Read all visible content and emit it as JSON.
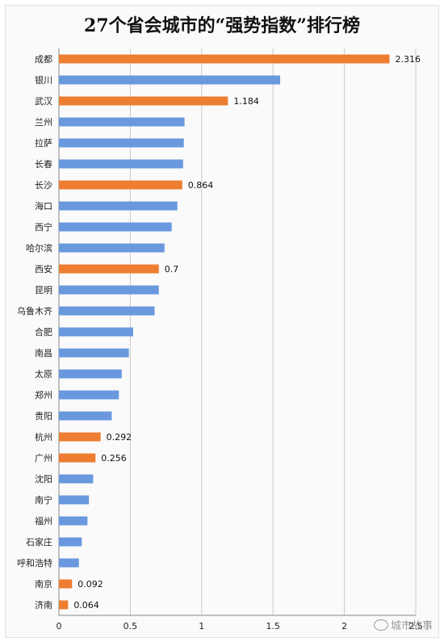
{
  "title": "27个省会城市的“强势指数”排行榜",
  "watermark": "城市故事",
  "colors": {
    "highlight": "#ED7D31",
    "normal": "#6A98DE",
    "grid": "#c9c9c9",
    "axis": "#888888"
  },
  "chart_data": {
    "type": "bar",
    "orientation": "horizontal",
    "title": "27个省会城市的“强势指数”排行榜",
    "xlabel": "",
    "ylabel": "",
    "xlim": [
      0,
      2.5
    ],
    "xticks": [
      0,
      0.5,
      1,
      1.5,
      2,
      2.5
    ],
    "xtick_labels": [
      "0",
      "0.5",
      "1",
      "1.5",
      "2",
      "2.5"
    ],
    "grid": true,
    "categories": [
      "成都",
      "银川",
      "武汉",
      "兰州",
      "拉萨",
      "长春",
      "长沙",
      "海口",
      "西宁",
      "哈尔滨",
      "西安",
      "昆明",
      "乌鲁木齐",
      "合肥",
      "南昌",
      "太原",
      "郑州",
      "贵阳",
      "杭州",
      "广州",
      "沈阳",
      "南宁",
      "福州",
      "石家庄",
      "呼和浩特",
      "南京",
      "济南"
    ],
    "values": [
      2.316,
      1.55,
      1.184,
      0.88,
      0.875,
      0.87,
      0.864,
      0.83,
      0.79,
      0.74,
      0.7,
      0.7,
      0.67,
      0.52,
      0.49,
      0.44,
      0.42,
      0.37,
      0.292,
      0.256,
      0.24,
      0.21,
      0.2,
      0.16,
      0.14,
      0.092,
      0.064
    ],
    "highlighted": [
      true,
      false,
      true,
      false,
      false,
      false,
      true,
      false,
      false,
      false,
      true,
      false,
      false,
      false,
      false,
      false,
      false,
      false,
      true,
      true,
      false,
      false,
      false,
      false,
      false,
      true,
      true
    ],
    "data_labels": [
      "2.316",
      "",
      "1.184",
      "",
      "",
      "",
      "0.864",
      "",
      "",
      "",
      "0.7",
      "",
      "",
      "",
      "",
      "",
      "",
      "",
      "0.292",
      "0.256",
      "",
      "",
      "",
      "",
      "",
      "0.092",
      "0.064"
    ]
  }
}
